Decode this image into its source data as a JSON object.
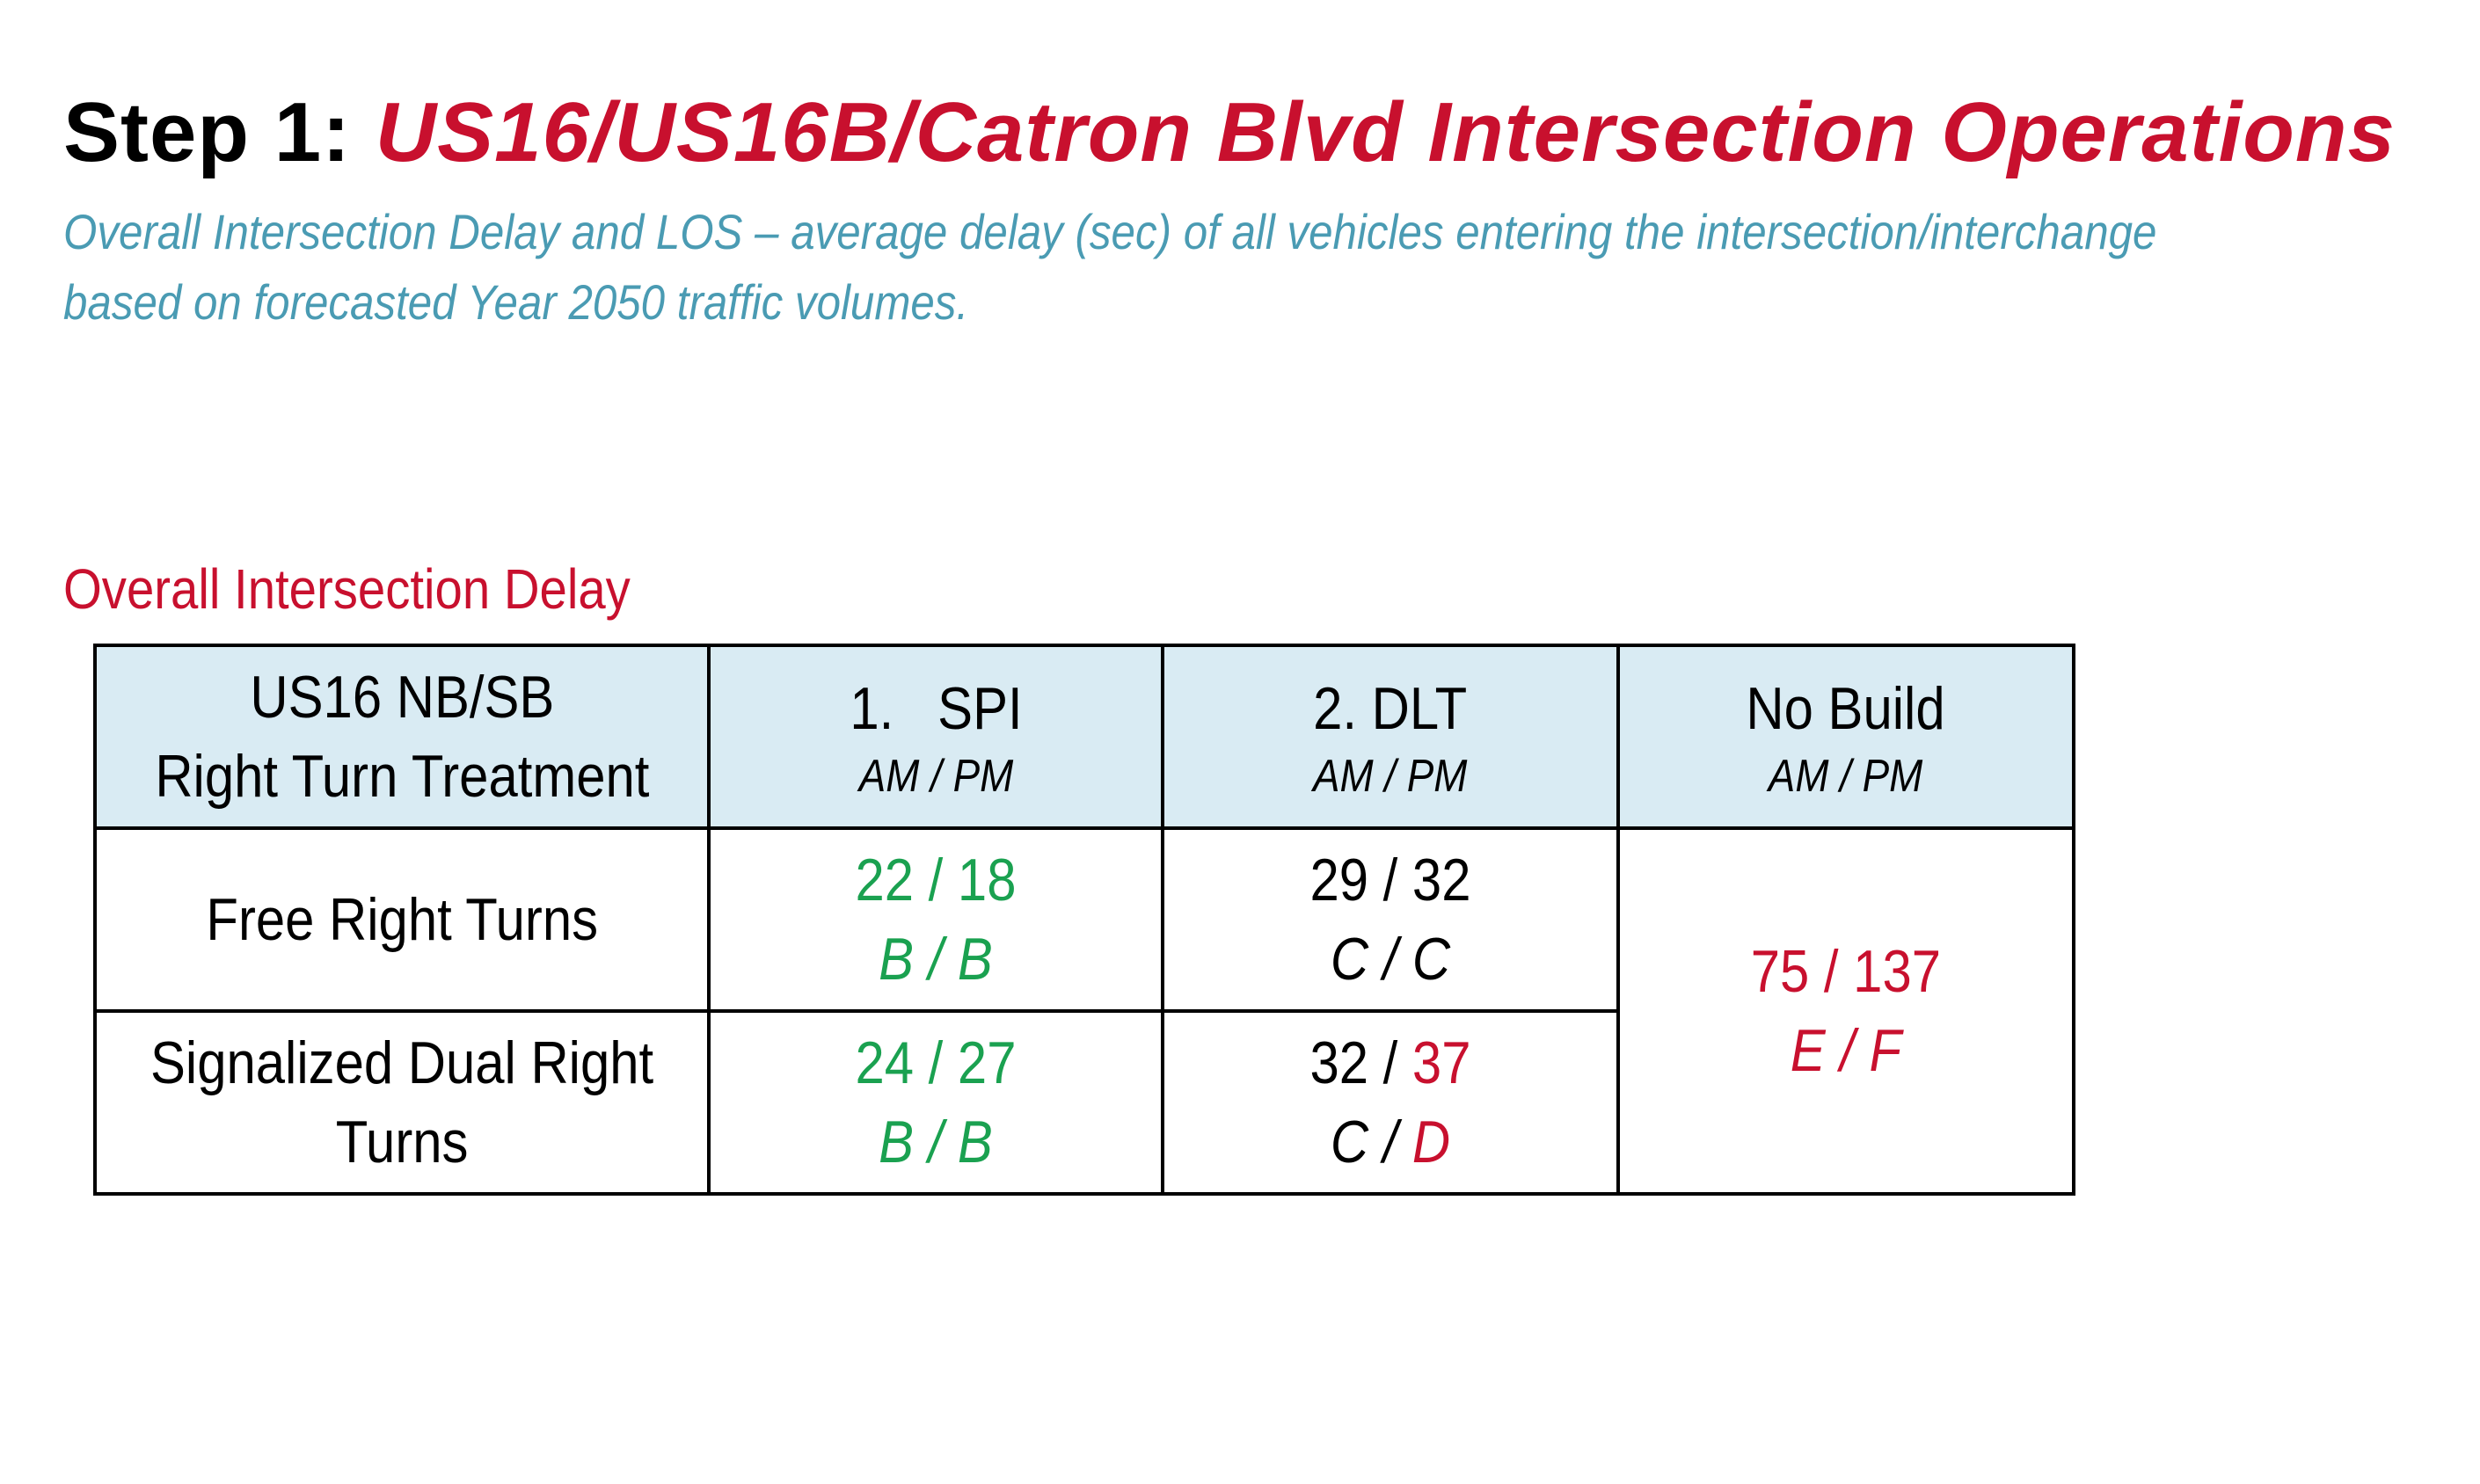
{
  "title": {
    "step": "Step 1:",
    "topic": "US16/US16B/Catron Blvd Intersection Operations"
  },
  "subtitle": {
    "line1": "Overall Intersection Delay and LOS – average delay (sec) of all vehicles entering the intersection/interchange",
    "line2": "based on forecasted Year 2050 traffic volumes."
  },
  "section_heading": "Overall Intersection Delay",
  "colors": {
    "title_accent": "#c8102e",
    "subtitle": "#4a9bb3",
    "acceptable": "#1aa150",
    "failing": "#c8102e",
    "header_bg": "#d9ebf3"
  },
  "table": {
    "header": {
      "col1_line1": "US16 NB/SB",
      "col1_line2": "Right Turn Treatment",
      "col2_title": "1.   SPI",
      "col2_sub": "AM / PM",
      "col3_title": "2. DLT",
      "col3_sub": "AM / PM",
      "col4_title": "No Build",
      "col4_sub": "AM / PM"
    },
    "rows": [
      {
        "label": "Free Right Turns",
        "spi_delay": "22 / 18",
        "spi_los": "B / B",
        "dlt_delay_am": "29",
        "dlt_delay_pm": "32",
        "dlt_los_am": "C",
        "dlt_los_pm": "C"
      },
      {
        "label_line1": "Signalized Dual Right",
        "label_line2": "Turns",
        "spi_delay": "24 / 27",
        "spi_los": "B / B",
        "dlt_delay_am": "32",
        "dlt_delay_pm": "37",
        "dlt_los_am": "C",
        "dlt_los_pm": "D"
      }
    ],
    "no_build": {
      "delay": "75 / 137",
      "los": "E / F"
    }
  }
}
